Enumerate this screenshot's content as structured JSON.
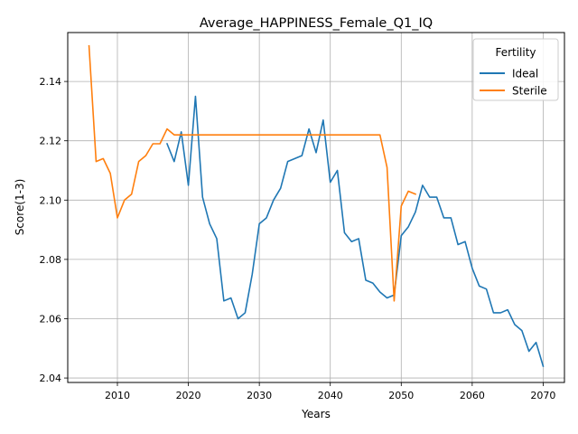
{
  "chart_data": {
    "type": "line",
    "title": "Average_HAPPINESS_Female_Q1_IQ",
    "xlabel": "Years",
    "ylabel": "Score(1-3)",
    "xlim": [
      2003,
      2073
    ],
    "ylim": [
      2.0385,
      2.1565
    ],
    "xticks": [
      2010,
      2020,
      2030,
      2040,
      2050,
      2060,
      2070
    ],
    "yticks": [
      2.04,
      2.06,
      2.08,
      2.1,
      2.12,
      2.14
    ],
    "ytick_labels": [
      "2.04",
      "2.06",
      "2.08",
      "2.10",
      "2.12",
      "2.14"
    ],
    "grid": true,
    "legend": {
      "title": "Fertility",
      "placement": "top-right"
    },
    "series": [
      {
        "name": "Ideal",
        "color": "#1f77b4",
        "x": [
          2017,
          2018,
          2019,
          2020,
          2021,
          2022,
          2023,
          2024,
          2025,
          2026,
          2027,
          2028,
          2029,
          2030,
          2031,
          2032,
          2033,
          2034,
          2035,
          2036,
          2037,
          2038,
          2039,
          2040,
          2041,
          2042,
          2043,
          2044,
          2045,
          2046,
          2047,
          2048,
          2049,
          2050,
          2051,
          2052,
          2053,
          2054,
          2055,
          2056,
          2057,
          2058,
          2059,
          2060,
          2061,
          2062,
          2063,
          2064,
          2065,
          2066,
          2067,
          2068,
          2069,
          2070
        ],
        "y": [
          2.119,
          2.113,
          2.123,
          2.105,
          2.135,
          2.101,
          2.092,
          2.087,
          2.066,
          2.067,
          2.06,
          2.062,
          2.075,
          2.092,
          2.094,
          2.1,
          2.104,
          2.113,
          2.114,
          2.115,
          2.124,
          2.116,
          2.127,
          2.106,
          2.11,
          2.089,
          2.086,
          2.087,
          2.073,
          2.072,
          2.069,
          2.067,
          2.068,
          2.088,
          2.091,
          2.096,
          2.105,
          2.101,
          2.101,
          2.094,
          2.094,
          2.085,
          2.086,
          2.077,
          2.071,
          2.07,
          2.062,
          2.062,
          2.063,
          2.058,
          2.056,
          2.049,
          2.052,
          2.044
        ]
      },
      {
        "name": "Sterile",
        "color": "#ff7f0e",
        "x": [
          2006,
          2007,
          2008,
          2009,
          2010,
          2011,
          2012,
          2013,
          2014,
          2015,
          2016,
          2017,
          2018,
          2019,
          2020,
          2021,
          2022,
          2023,
          2024,
          2025,
          2026,
          2027,
          2028,
          2029,
          2030,
          2031,
          2032,
          2033,
          2034,
          2035,
          2036,
          2037,
          2038,
          2039,
          2040,
          2041,
          2042,
          2043,
          2044,
          2045,
          2046,
          2047,
          2048,
          2049,
          2050,
          2051,
          2052
        ],
        "y": [
          2.152,
          2.113,
          2.114,
          2.109,
          2.094,
          2.1,
          2.102,
          2.113,
          2.115,
          2.119,
          2.119,
          2.124,
          2.122,
          2.122,
          2.122,
          2.122,
          2.122,
          2.122,
          2.122,
          2.122,
          2.122,
          2.122,
          2.122,
          2.122,
          2.122,
          2.122,
          2.122,
          2.122,
          2.122,
          2.122,
          2.122,
          2.122,
          2.122,
          2.122,
          2.122,
          2.122,
          2.122,
          2.122,
          2.122,
          2.122,
          2.122,
          2.122,
          2.111,
          2.066,
          2.098,
          2.103,
          2.102
        ]
      }
    ]
  }
}
